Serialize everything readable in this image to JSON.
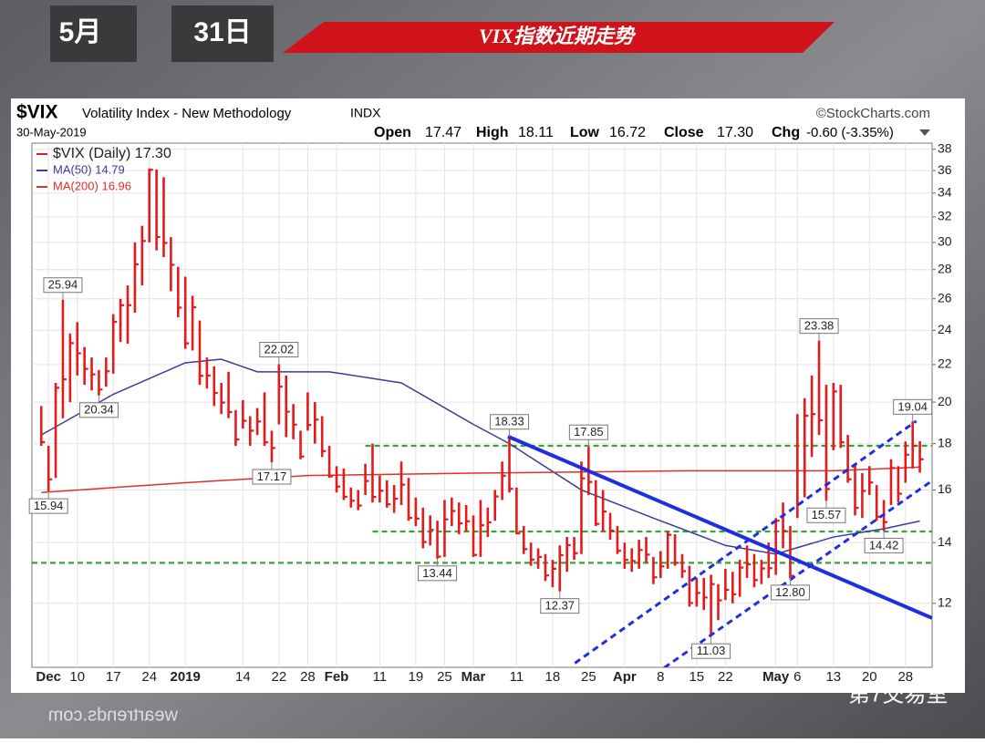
{
  "overlay": {
    "month": "5月",
    "day": "31日",
    "banner": "VIX指数近期走势",
    "watermark": "第7交易室",
    "mirror": "weartrends.com"
  },
  "chart_data": {
    "type": "ohlc",
    "header": {
      "symbol": "$VIX",
      "name": "Volatility Index - New Methodology",
      "exchange": "INDX",
      "source": "©StockCharts.com",
      "date": "30-May-2019",
      "quote": [
        {
          "label": "Open",
          "value": "17.47"
        },
        {
          "label": "High",
          "value": "18.11"
        },
        {
          "label": "Low",
          "value": "16.72"
        },
        {
          "label": "Close",
          "value": "17.30"
        },
        {
          "label": "Chg",
          "value": "-0.60 (-3.35%)"
        }
      ]
    },
    "categories": [
      null,
      "Dec",
      null,
      null,
      null,
      "10",
      null,
      null,
      null,
      null,
      "17",
      null,
      null,
      null,
      null,
      "24",
      null,
      null,
      null,
      null,
      "2019",
      null,
      null,
      null,
      null,
      null,
      null,
      null,
      "14",
      null,
      null,
      null,
      null,
      "22",
      null,
      null,
      null,
      "28",
      null,
      null,
      null,
      "Feb",
      null,
      null,
      null,
      null,
      null,
      "11",
      null,
      null,
      null,
      null,
      "19",
      null,
      null,
      null,
      "25",
      null,
      null,
      null,
      "Mar",
      null,
      null,
      null,
      null,
      null,
      "11",
      null,
      null,
      null,
      null,
      "18",
      null,
      null,
      null,
      null,
      "25",
      null,
      null,
      null,
      null,
      "Apr",
      null,
      null,
      null,
      null,
      "8",
      null,
      null,
      null,
      null,
      "15",
      null,
      null,
      null,
      "22",
      null,
      null,
      null,
      null,
      null,
      null,
      "May",
      null,
      null,
      "6",
      null,
      null,
      null,
      null,
      "13",
      null,
      null,
      null,
      null,
      "20",
      null,
      null,
      null,
      null,
      "28",
      null,
      null
    ],
    "series": [
      {
        "name": "$VIX (Daily) 17.30",
        "color": "#e41a1c",
        "high": [
          19.8,
          17.9,
          21.0,
          25.94,
          23.8,
          24.5,
          23.0,
          22.4,
          21.7,
          22.4,
          25.0,
          26.0,
          26.9,
          30.0,
          31.3,
          36.2,
          36.1,
          35.4,
          30.4,
          28.2,
          27.5,
          26.2,
          24.6,
          22.4,
          21.9,
          21.0,
          21.6,
          19.6,
          20.1,
          19.3,
          19.7,
          20.5,
          18.6,
          22.02,
          21.4,
          19.9,
          18.6,
          20.5,
          20.0,
          19.3,
          17.9,
          17.0,
          16.9,
          16.1,
          16.0,
          17.1,
          18.0,
          16.6,
          16.4,
          16.2,
          17.2,
          16.5,
          15.7,
          15.3,
          15.0,
          14.8,
          15.6,
          15.7,
          15.5,
          15.4,
          15.0,
          15.6,
          15.3,
          16.0,
          17.2,
          18.33,
          16.1,
          14.6,
          14.0,
          13.8,
          13.6,
          13.4,
          13.9,
          14.2,
          14.2,
          17.2,
          17.85,
          16.4,
          16.0,
          15.1,
          14.6,
          14.0,
          13.8,
          14.1,
          14.2,
          13.5,
          13.7,
          14.4,
          14.3,
          13.6,
          13.2,
          12.8,
          12.8,
          12.9,
          12.6,
          13.1,
          13.0,
          13.4,
          13.9,
          13.6,
          13.4,
          14.0,
          14.9,
          15.5,
          14.6,
          19.4,
          20.2,
          21.4,
          23.38,
          20.9,
          21.0,
          20.9,
          18.4,
          17.1,
          16.7,
          17.0,
          16.2,
          15.6,
          17.3,
          17.0,
          18.1,
          19.04,
          18.11
        ],
        "low": [
          17.9,
          15.94,
          16.5,
          19.2,
          20.0,
          21.4,
          20.9,
          20.6,
          20.34,
          20.8,
          21.5,
          23.3,
          23.2,
          25.1,
          26.9,
          30.0,
          29.4,
          28.9,
          26.5,
          24.8,
          22.9,
          22.8,
          20.9,
          20.7,
          19.8,
          19.4,
          19.2,
          17.9,
          18.7,
          17.9,
          18.4,
          17.9,
          17.17,
          18.9,
          18.3,
          18.2,
          17.3,
          18.6,
          18.0,
          17.4,
          16.5,
          15.9,
          15.6,
          15.3,
          15.2,
          15.8,
          15.5,
          15.5,
          15.3,
          15.1,
          15.4,
          14.8,
          14.6,
          13.8,
          13.9,
          13.44,
          13.5,
          14.6,
          14.3,
          14.4,
          13.5,
          13.5,
          14.2,
          14.8,
          15.6,
          15.9,
          14.3,
          13.6,
          13.2,
          13.1,
          12.7,
          12.5,
          12.37,
          13.0,
          13.4,
          13.6,
          15.8,
          14.6,
          14.4,
          14.1,
          13.6,
          13.1,
          13.0,
          13.1,
          13.3,
          12.6,
          12.8,
          13.1,
          13.2,
          12.8,
          11.9,
          11.9,
          11.8,
          11.03,
          11.5,
          12.1,
          12.0,
          12.2,
          12.8,
          12.5,
          12.6,
          12.8,
          12.9,
          13.8,
          12.8,
          14.9,
          15.7,
          17.4,
          18.4,
          15.57,
          17.7,
          17.8,
          16.3,
          15.0,
          14.9,
          15.8,
          14.8,
          14.42,
          15.4,
          15.5,
          16.3,
          16.9,
          16.72
        ],
        "close": [
          18.07,
          16.44,
          20.74,
          21.19,
          23.23,
          22.64,
          21.76,
          21.46,
          20.65,
          21.63,
          24.52,
          25.58,
          25.58,
          28.38,
          30.11,
          36.07,
          30.41,
          29.96,
          28.34,
          25.42,
          23.22,
          25.45,
          21.38,
          21.4,
          20.47,
          19.98,
          19.5,
          18.19,
          19.07,
          18.6,
          19.04,
          18.06,
          17.8,
          20.8,
          19.52,
          18.89,
          17.42,
          18.87,
          19.13,
          17.66,
          16.57,
          16.14,
          15.73,
          15.57,
          15.38,
          16.37,
          15.72,
          15.97,
          15.43,
          15.65,
          16.22,
          14.91,
          14.88,
          14.02,
          14.46,
          13.51,
          14.85,
          15.17,
          14.7,
          14.78,
          13.57,
          14.63,
          14.74,
          15.74,
          16.59,
          16.05,
          14.33,
          13.77,
          13.41,
          13.5,
          12.88,
          13.1,
          13.56,
          13.91,
          13.63,
          16.48,
          16.33,
          14.68,
          15.15,
          14.43,
          13.71,
          13.4,
          13.36,
          13.74,
          13.58,
          12.82,
          13.18,
          14.28,
          13.3,
          13.02,
          12.01,
          12.32,
          12.18,
          12.6,
          12.09,
          12.42,
          12.28,
          13.14,
          13.25,
          12.73,
          13.11,
          13.12,
          14.8,
          14.42,
          12.87,
          15.44,
          19.32,
          19.4,
          19.1,
          16.04,
          20.55,
          18.06,
          16.44,
          15.29,
          15.96,
          16.31,
          14.95,
          14.75,
          16.92,
          15.85,
          17.5,
          17.9,
          17.3
        ]
      },
      {
        "name": "MA(50) 14.79",
        "color": "#3b3b9a",
        "x": [
          0,
          10,
          20,
          25,
          30,
          40,
          50,
          60,
          65,
          75,
          85,
          95,
          102,
          110,
          117,
          122
        ],
        "values": [
          18.4,
          20.4,
          22.1,
          22.3,
          21.6,
          21.6,
          21.0,
          18.9,
          18.0,
          16.0,
          14.9,
          13.9,
          13.6,
          14.2,
          14.5,
          14.79
        ]
      },
      {
        "name": "MA(200) 16.96",
        "color": "#e0302b",
        "x": [
          0,
          20,
          37,
          60,
          90,
          110,
          122
        ],
        "values": [
          15.9,
          16.3,
          16.6,
          16.7,
          16.8,
          16.8,
          16.96
        ]
      }
    ],
    "callouts": [
      {
        "label": "15.94",
        "bar": 1,
        "side": "low"
      },
      {
        "label": "25.94",
        "bar": 3,
        "side": "high"
      },
      {
        "label": "20.34",
        "bar": 8,
        "side": "low"
      },
      {
        "label": "22.02",
        "bar": 33,
        "side": "high"
      },
      {
        "label": "17.17",
        "bar": 32,
        "side": "low"
      },
      {
        "label": "13.44",
        "bar": 55,
        "side": "low"
      },
      {
        "label": "18.33",
        "bar": 65,
        "side": "high"
      },
      {
        "label": "17.85",
        "bar": 76,
        "side": "high"
      },
      {
        "label": "12.37",
        "bar": 72,
        "side": "low"
      },
      {
        "label": "11.03",
        "bar": 93,
        "side": "low"
      },
      {
        "label": "12.80",
        "bar": 104,
        "side": "low"
      },
      {
        "label": "23.38",
        "bar": 108,
        "side": "high"
      },
      {
        "label": "15.57",
        "bar": 109,
        "side": "low"
      },
      {
        "label": "14.42",
        "bar": 117,
        "side": "low"
      },
      {
        "label": "19.04",
        "bar": 121,
        "side": "high"
      }
    ],
    "levels": [
      {
        "value": 17.9,
        "from": 45,
        "color": "#3aa335"
      },
      {
        "value": 14.4,
        "from": 46,
        "color": "#3aa335"
      },
      {
        "value": 13.3,
        "from": -1.3,
        "color": "#3aa335"
      }
    ],
    "trendlines": [
      {
        "style": "solid",
        "color": "#1f2fe0",
        "x": [
          64.8,
          123.7
        ],
        "y": [
          18.33,
          11.56
        ]
      },
      {
        "style": "dashed",
        "color": "#1f2fe0",
        "x": [
          74.1,
          121.5
        ],
        "y": [
          10.31,
          19.06
        ]
      },
      {
        "style": "dashed",
        "color": "#1f2fe0",
        "x": [
          86.5,
          123.7
        ],
        "y": [
          10.19,
          16.38
        ]
      }
    ],
    "xlim": [
      -1.3,
      123.7
    ],
    "ylim": [
      10.2,
      38.6
    ],
    "yticks": [
      12,
      14,
      16,
      18,
      20,
      22,
      24,
      26,
      28,
      30,
      32,
      34,
      36,
      38
    ],
    "log_scale": true,
    "grid": true
  }
}
